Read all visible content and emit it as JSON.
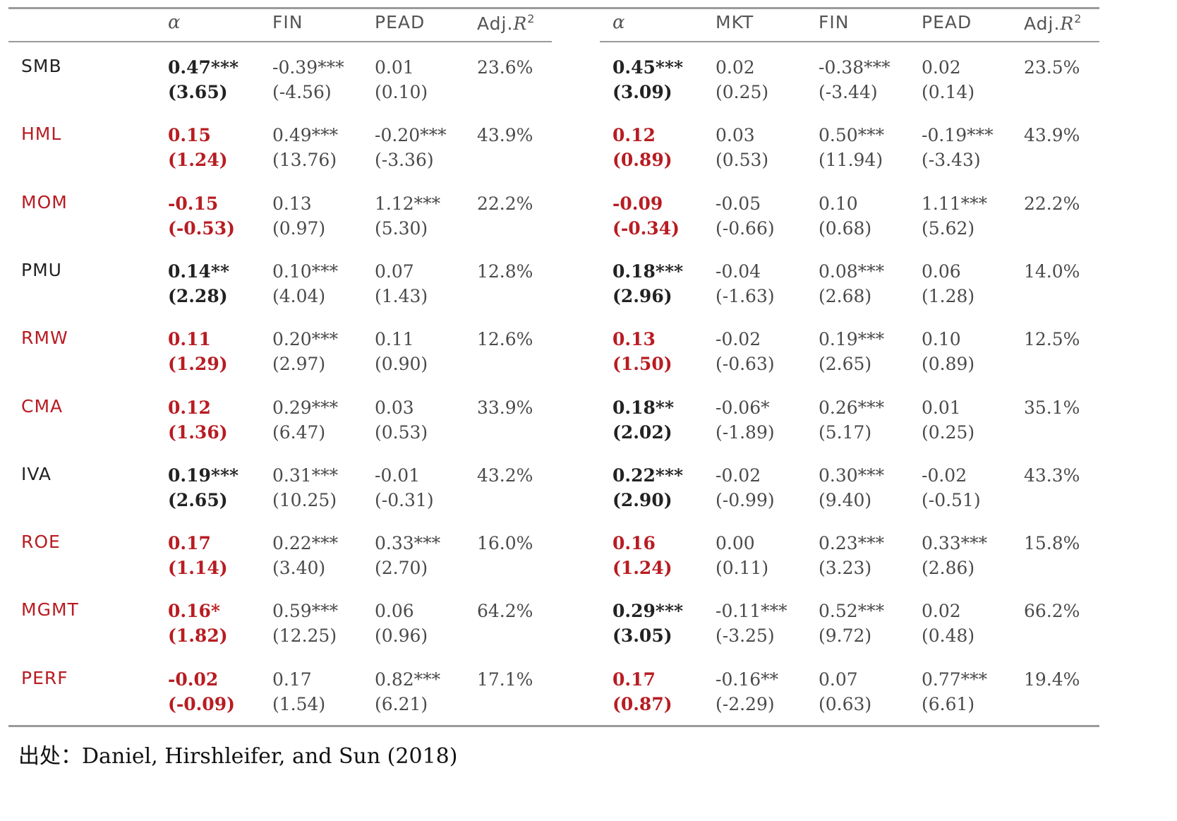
{
  "headers_left": {
    "alpha": "α",
    "fin": "FIN",
    "pead": "PEAD",
    "adjr2_prefix": "Adj.",
    "adjr2_var": "R",
    "adjr2_sup": "2"
  },
  "headers_right": {
    "alpha": "α",
    "mkt": "MKT",
    "fin": "FIN",
    "pead": "PEAD",
    "adjr2_prefix": "Adj.",
    "adjr2_var": "R",
    "adjr2_sup": "2"
  },
  "colors": {
    "significant": "#222222",
    "insignificant": "#b81c22"
  },
  "rows": [
    {
      "factor": "SMB",
      "highlight": false,
      "left": {
        "alpha": "0.47***",
        "alpha_t": "(3.65)",
        "fin": "-0.39***",
        "fin_t": "(-4.56)",
        "pead": "0.01",
        "pead_t": "(0.10)",
        "adj_r2": "23.6%"
      },
      "right": {
        "alpha": "0.45***",
        "alpha_t": "(3.09)",
        "alpha_highlight": false,
        "mkt": "0.02",
        "mkt_t": "(0.25)",
        "fin": "-0.38***",
        "fin_t": "(-3.44)",
        "pead": "0.02",
        "pead_t": "(0.14)",
        "adj_r2": "23.5%"
      }
    },
    {
      "factor": "HML",
      "highlight": true,
      "left": {
        "alpha": "0.15",
        "alpha_t": "(1.24)",
        "fin": "0.49***",
        "fin_t": "(13.76)",
        "pead": "-0.20***",
        "pead_t": "(-3.36)",
        "adj_r2": "43.9%"
      },
      "right": {
        "alpha": "0.12",
        "alpha_t": "(0.89)",
        "alpha_highlight": true,
        "mkt": "0.03",
        "mkt_t": "(0.53)",
        "fin": "0.50***",
        "fin_t": "(11.94)",
        "pead": "-0.19***",
        "pead_t": "(-3.43)",
        "adj_r2": "43.9%"
      }
    },
    {
      "factor": "MOM",
      "highlight": true,
      "left": {
        "alpha": "-0.15",
        "alpha_t": "(-0.53)",
        "fin": "0.13",
        "fin_t": "(0.97)",
        "pead": "1.12***",
        "pead_t": "(5.30)",
        "adj_r2": "22.2%"
      },
      "right": {
        "alpha": "-0.09",
        "alpha_t": "(-0.34)",
        "alpha_highlight": true,
        "mkt": "-0.05",
        "mkt_t": "(-0.66)",
        "fin": "0.10",
        "fin_t": "(0.68)",
        "pead": "1.11***",
        "pead_t": "(5.62)",
        "adj_r2": "22.2%"
      }
    },
    {
      "factor": "PMU",
      "highlight": false,
      "left": {
        "alpha": "0.14**",
        "alpha_t": "(2.28)",
        "fin": "0.10***",
        "fin_t": "(4.04)",
        "pead": "0.07",
        "pead_t": "(1.43)",
        "adj_r2": "12.8%"
      },
      "right": {
        "alpha": "0.18***",
        "alpha_t": "(2.96)",
        "alpha_highlight": false,
        "mkt": "-0.04",
        "mkt_t": "(-1.63)",
        "fin": "0.08***",
        "fin_t": "(2.68)",
        "pead": "0.06",
        "pead_t": "(1.28)",
        "adj_r2": "14.0%"
      }
    },
    {
      "factor": "RMW",
      "highlight": true,
      "left": {
        "alpha": "0.11",
        "alpha_t": "(1.29)",
        "fin": "0.20***",
        "fin_t": "(2.97)",
        "pead": "0.11",
        "pead_t": "(0.90)",
        "adj_r2": "12.6%"
      },
      "right": {
        "alpha": "0.13",
        "alpha_t": "(1.50)",
        "alpha_highlight": true,
        "mkt": "-0.02",
        "mkt_t": "(-0.63)",
        "fin": "0.19***",
        "fin_t": "(2.65)",
        "pead": "0.10",
        "pead_t": "(0.89)",
        "adj_r2": "12.5%"
      }
    },
    {
      "factor": "CMA",
      "highlight": true,
      "left": {
        "alpha": "0.12",
        "alpha_t": "(1.36)",
        "fin": "0.29***",
        "fin_t": "(6.47)",
        "pead": "0.03",
        "pead_t": "(0.53)",
        "adj_r2": "33.9%"
      },
      "right": {
        "alpha": "0.18**",
        "alpha_t": "(2.02)",
        "alpha_highlight": false,
        "mkt": "-0.06*",
        "mkt_t": "(-1.89)",
        "fin": "0.26***",
        "fin_t": "(5.17)",
        "pead": "0.01",
        "pead_t": "(0.25)",
        "adj_r2": "35.1%"
      }
    },
    {
      "factor": "IVA",
      "highlight": false,
      "left": {
        "alpha": "0.19***",
        "alpha_t": "(2.65)",
        "fin": "0.31***",
        "fin_t": "(10.25)",
        "pead": "-0.01",
        "pead_t": "(-0.31)",
        "adj_r2": "43.2%"
      },
      "right": {
        "alpha": "0.22***",
        "alpha_t": "(2.90)",
        "alpha_highlight": false,
        "mkt": "-0.02",
        "mkt_t": "(-0.99)",
        "fin": "0.30***",
        "fin_t": "(9.40)",
        "pead": "-0.02",
        "pead_t": "(-0.51)",
        "adj_r2": "43.3%"
      }
    },
    {
      "factor": "ROE",
      "highlight": true,
      "left": {
        "alpha": "0.17",
        "alpha_t": "(1.14)",
        "fin": "0.22***",
        "fin_t": "(3.40)",
        "pead": "0.33***",
        "pead_t": "(2.70)",
        "adj_r2": "16.0%"
      },
      "right": {
        "alpha": "0.16",
        "alpha_t": "(1.24)",
        "alpha_highlight": true,
        "mkt": "0.00",
        "mkt_t": "(0.11)",
        "fin": "0.23***",
        "fin_t": "(3.23)",
        "pead": "0.33***",
        "pead_t": "(2.86)",
        "adj_r2": "15.8%"
      }
    },
    {
      "factor": "MGMT",
      "highlight": true,
      "left": {
        "alpha": "0.16*",
        "alpha_t": "(1.82)",
        "fin": "0.59***",
        "fin_t": "(12.25)",
        "pead": "0.06",
        "pead_t": "(0.96)",
        "adj_r2": "64.2%"
      },
      "right": {
        "alpha": "0.29***",
        "alpha_t": "(3.05)",
        "alpha_highlight": false,
        "mkt": "-0.11***",
        "mkt_t": "(-3.25)",
        "fin": "0.52***",
        "fin_t": "(9.72)",
        "pead": "0.02",
        "pead_t": "(0.48)",
        "adj_r2": "66.2%"
      }
    },
    {
      "factor": "PERF",
      "highlight": true,
      "left": {
        "alpha": "-0.02",
        "alpha_t": "(-0.09)",
        "fin": "0.17",
        "fin_t": "(1.54)",
        "pead": "0.82***",
        "pead_t": "(6.21)",
        "adj_r2": "17.1%"
      },
      "right": {
        "alpha": "0.17",
        "alpha_t": "(0.87)",
        "alpha_highlight": true,
        "mkt": "-0.16**",
        "mkt_t": "(-2.29)",
        "fin": "0.07",
        "fin_t": "(0.63)",
        "pead": "0.77***",
        "pead_t": "(6.61)",
        "adj_r2": "19.4%"
      }
    }
  ],
  "source": "出处：Daniel, Hirshleifer, and Sun (2018)"
}
